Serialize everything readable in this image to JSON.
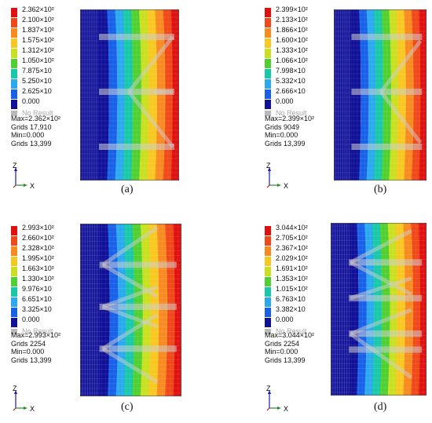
{
  "panels": [
    {
      "caption": "(a)",
      "legend": [
        "2.362×10²",
        "2.100×10²",
        "1.837×10²",
        "1.575×10²",
        "1.312×10²",
        "1.050×10²",
        "7.875×10",
        "5.250×10",
        "2.625×10",
        "0.000"
      ],
      "no_result": "No Result",
      "stats": [
        "Max=2.362×10²",
        "Grids 17,910",
        "Min=0.000",
        "Grids 13,399"
      ],
      "structure": "a"
    },
    {
      "caption": "(b)",
      "legend": [
        "2.399×10²",
        "2.133×10²",
        "1.866×10²",
        "1.600×10²",
        "1.333×10²",
        "1.066×10²",
        "7.998×10",
        "5.332×10",
        "2.666×10",
        "0.000"
      ],
      "no_result": "No Result",
      "stats": [
        "Max=2.399×10²",
        "Grids 9049",
        "Min=0.000",
        "Grids 13,399"
      ],
      "structure": "b"
    },
    {
      "caption": "(c)",
      "legend": [
        "2.993×10²",
        "2.660×10²",
        "2.328×10²",
        "1.995×10²",
        "1.663×10²",
        "1.330×10²",
        "9.976×10",
        "6.651×10",
        "3.325×10",
        "0.000"
      ],
      "no_result": "No Result",
      "stats": [
        "Max=2.993×10²",
        "Grids 2254",
        "Min=0.000",
        "Grids 13,399"
      ],
      "structure": "c"
    },
    {
      "caption": "(d)",
      "legend": [
        "3.044×10²",
        "2.705×10²",
        "2.367×10²",
        "2.029×10²",
        "1.691×10²",
        "1.353×10²",
        "1.015×10²",
        "6.763×10",
        "3.382×10",
        "0.000"
      ],
      "no_result": "No Result",
      "stats": [
        "Max=3.044×10²",
        "Grids 2254",
        "Min=0.000",
        "Grids 13,399"
      ],
      "structure": "d"
    }
  ],
  "axis_labels": {
    "z": "Z",
    "x": "X"
  },
  "colors": {
    "scale": [
      "#e01010",
      "#f04818",
      "#f88a20",
      "#f8c820",
      "#c8e020",
      "#50d030",
      "#18c8a8",
      "#2aa8f0",
      "#1860e8",
      "#101098"
    ],
    "no_result": "#b9b9b9"
  }
}
